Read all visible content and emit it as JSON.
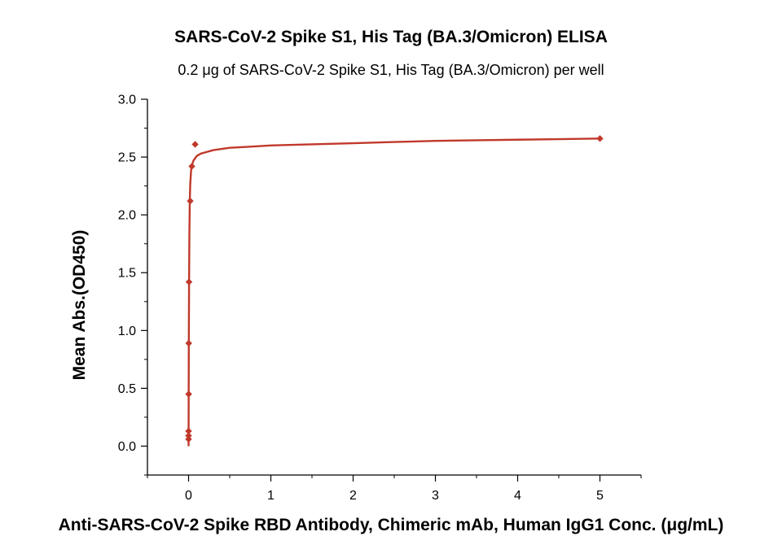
{
  "chart_data": {
    "type": "scatter",
    "title": "SARS-CoV-2 Spike S1, His Tag (BA.3/Omicron) ELISA",
    "subtitle": "0.2 μg of SARS-CoV-2 Spike S1, His Tag (BA.3/Omicron) per well",
    "xlabel": "Anti-SARS-CoV-2 Spike RBD Antibody, Chimeric mAb, Human IgG1 Conc. (μg/mL)",
    "ylabel": "Mean Abs.(OD450)",
    "xlim": [
      -0.5,
      5.5
    ],
    "ylim": [
      -0.25,
      3.0
    ],
    "x_ticks": [
      "0",
      "1",
      "2",
      "3",
      "4",
      "5"
    ],
    "y_ticks": [
      "0.0",
      "0.5",
      "1.0",
      "1.5",
      "2.0",
      "2.5",
      "3.0"
    ],
    "grid": false,
    "color": "#c0392b",
    "points": [
      {
        "x": 0.0,
        "y": 0.06
      },
      {
        "x": 0.0,
        "y": 0.09
      },
      {
        "x": 0.0,
        "y": 0.13
      },
      {
        "x": 0.001,
        "y": 0.45
      },
      {
        "x": 0.002,
        "y": 0.89
      },
      {
        "x": 0.005,
        "y": 1.42
      },
      {
        "x": 0.02,
        "y": 2.12
      },
      {
        "x": 0.04,
        "y": 2.42
      },
      {
        "x": 0.08,
        "y": 2.61
      },
      {
        "x": 5.0,
        "y": 2.66
      }
    ],
    "fit_curve": {
      "x": [
        0.0,
        0.001,
        0.003,
        0.006,
        0.01,
        0.015,
        0.02,
        0.03,
        0.04,
        0.06,
        0.08,
        0.1,
        0.15,
        0.2,
        0.3,
        0.5,
        0.75,
        1.0,
        1.5,
        2.0,
        2.5,
        3.0,
        3.5,
        4.0,
        4.5,
        5.0
      ],
      "y": [
        0.0,
        0.35,
        0.9,
        1.42,
        1.85,
        2.12,
        2.26,
        2.38,
        2.43,
        2.47,
        2.49,
        2.51,
        2.53,
        2.54,
        2.56,
        2.58,
        2.59,
        2.6,
        2.61,
        2.62,
        2.63,
        2.64,
        2.645,
        2.65,
        2.655,
        2.66
      ]
    }
  }
}
